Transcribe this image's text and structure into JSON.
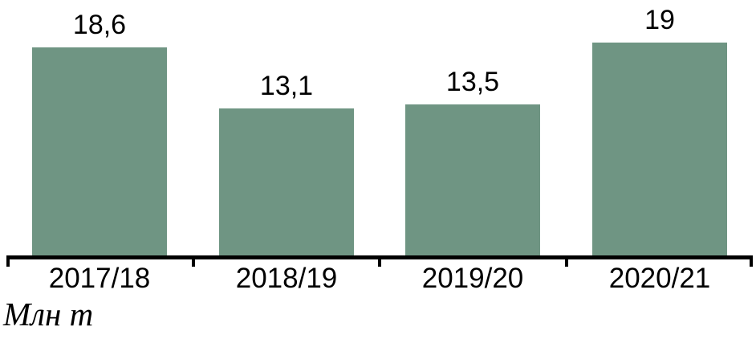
{
  "chart_data": {
    "type": "bar",
    "title": "",
    "xlabel": "",
    "ylabel": "Млн т",
    "unit_label": "Млн т",
    "categories": [
      "2017/18",
      "2018/19",
      "2019/20",
      "2020/21"
    ],
    "values": [
      18.6,
      13.1,
      13.5,
      19
    ],
    "value_labels": [
      "18,6",
      "13,1",
      "13,5",
      "19"
    ],
    "ylim": [
      0,
      20
    ],
    "grid": false,
    "legend": "none",
    "bar_color": "#6F9583",
    "axis_color": "#000000",
    "text_color": "#000000"
  }
}
